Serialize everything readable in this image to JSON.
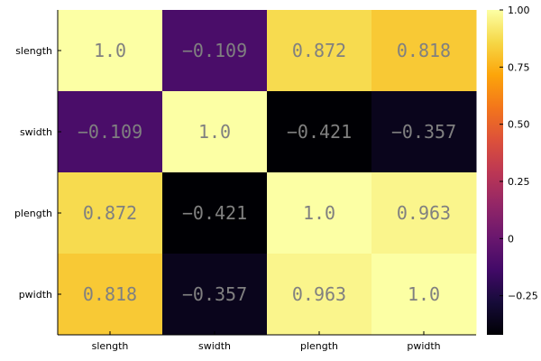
{
  "chart_data": {
    "type": "heatmap",
    "title": "",
    "xlabel": "",
    "ylabel": "",
    "x_categories": [
      "slength",
      "swidth",
      "plength",
      "pwidth"
    ],
    "y_categories": [
      "slength",
      "swidth",
      "plength",
      "pwidth"
    ],
    "values": [
      [
        1.0,
        -0.109,
        0.872,
        0.818
      ],
      [
        -0.109,
        1.0,
        -0.421,
        -0.357
      ],
      [
        0.872,
        -0.421,
        1.0,
        0.963
      ],
      [
        0.818,
        -0.357,
        0.963,
        1.0
      ]
    ],
    "cell_labels": [
      [
        "1.0",
        "−0.109",
        "0.872",
        "0.818"
      ],
      [
        "−0.109",
        "1.0",
        "−0.421",
        "−0.357"
      ],
      [
        "0.872",
        "−0.421",
        "1.0",
        "0.963"
      ],
      [
        "0.818",
        "−0.357",
        "0.963",
        "1.0"
      ]
    ],
    "colorbar": {
      "colormap": "inferno",
      "range": [
        -0.421,
        1.0
      ],
      "ticks": [
        -0.25,
        0,
        0.25,
        0.5,
        0.75,
        1.0
      ],
      "tick_labels": [
        "−0.25",
        "0",
        "0.25",
        "0.50",
        "0.75",
        "1.00"
      ]
    },
    "grid": false,
    "legend": "colorbar-right"
  }
}
